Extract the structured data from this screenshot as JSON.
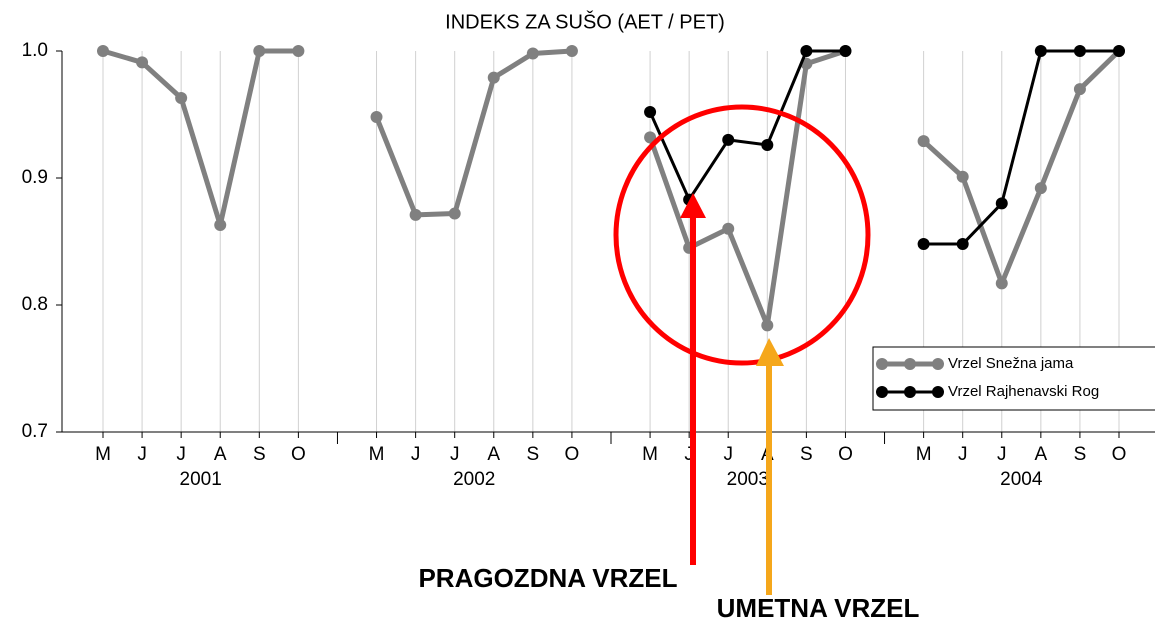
{
  "chart_data": {
    "type": "line",
    "title": "INDEKS ZA SUŠO (AET / PET)",
    "categories": [
      "M",
      "J",
      "J",
      "A",
      "S",
      "O",
      null,
      "M",
      "J",
      "J",
      "A",
      "S",
      "O",
      null,
      "M",
      "J",
      "J",
      "A",
      "S",
      "O",
      null,
      "M",
      "J",
      "J",
      "A",
      "S",
      "O"
    ],
    "years": [
      "2001",
      "2002",
      "2003",
      "2004"
    ],
    "series": [
      {
        "name": "Vrzel Snežna jama",
        "color": "#808080",
        "values": [
          1.0,
          0.991,
          0.963,
          0.863,
          1.0,
          1.0,
          null,
          0.948,
          0.871,
          0.872,
          0.979,
          0.998,
          1.0,
          null,
          0.932,
          0.845,
          0.86,
          0.784,
          0.99,
          1.0,
          null,
          0.929,
          0.901,
          0.817,
          0.892,
          0.97,
          1.0
        ]
      },
      {
        "name": "Vrzel Rajhenavski Rog",
        "color": "#000000",
        "values": [
          null,
          null,
          null,
          null,
          null,
          null,
          null,
          null,
          null,
          null,
          null,
          null,
          null,
          null,
          0.952,
          0.883,
          0.93,
          0.926,
          1.0,
          1.0,
          null,
          0.848,
          0.848,
          0.88,
          1.0,
          1.0,
          1.0
        ]
      }
    ],
    "ylim": [
      0.7,
      1.0
    ],
    "yticks": [
      {
        "value": 1.0,
        "label": "1.0"
      },
      0.9,
      0.8,
      0.7
    ],
    "grid": true,
    "legend": "lower right",
    "annotations": [
      {
        "text": "PRAGOZDNA VRZEL",
        "color": "#ff0000"
      },
      {
        "text": "UMETNA VRZEL",
        "color": "#f5a71b"
      }
    ]
  }
}
